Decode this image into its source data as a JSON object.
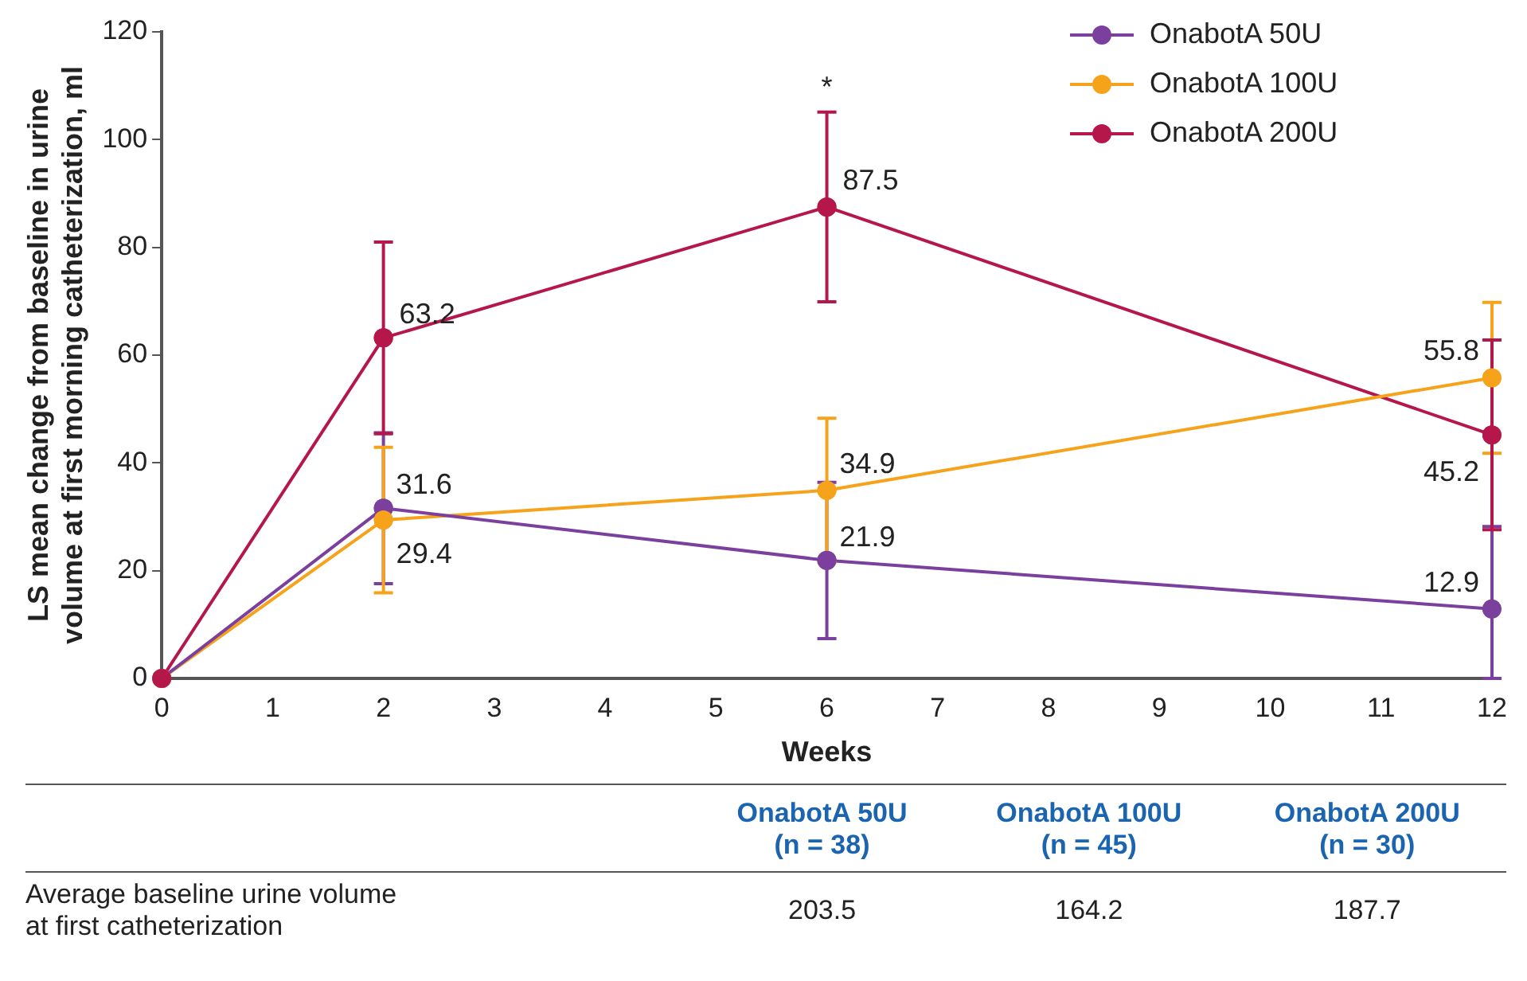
{
  "chart_data": {
    "type": "line",
    "xlabel": "Weeks",
    "ylabel": "LS mean change from baseline in urine volume at first morning catheterization, ml",
    "x": [
      0,
      2,
      6,
      12
    ],
    "series": [
      {
        "name": "OnabotA 50U",
        "color": "#7b3f9e",
        "values": [
          0,
          31.6,
          21.9,
          12.9
        ],
        "errors": [
          null,
          14,
          14.5,
          [
            0,
            28.2
          ]
        ],
        "value_labels": [
          null,
          "31.6",
          "21.9",
          "12.9"
        ]
      },
      {
        "name": "OnabotA 100U",
        "color": "#f7a21b",
        "values": [
          0,
          29.4,
          34.9,
          55.8
        ],
        "errors": [
          null,
          13.5,
          13.4,
          14
        ],
        "value_labels": [
          null,
          "29.4",
          "34.9",
          "55.8"
        ]
      },
      {
        "name": "OnabotA 200U",
        "color": "#b5174b",
        "values": [
          0,
          63.2,
          87.5,
          45.2
        ],
        "errors": [
          null,
          17.8,
          17.6,
          17.6
        ],
        "value_labels": [
          null,
          "63.2",
          "87.5",
          "45.2"
        ]
      }
    ],
    "xlim": [
      0,
      12
    ],
    "xticks": [
      0,
      1,
      2,
      3,
      4,
      5,
      6,
      7,
      8,
      9,
      10,
      11,
      12
    ],
    "ylim": [
      0,
      120
    ],
    "yticks": [
      0,
      20,
      40,
      60,
      80,
      100,
      120
    ],
    "grid": false,
    "legend": "top right",
    "marker": "circle",
    "line_style": "solid",
    "annotations": [
      {
        "text": "*",
        "x": 6,
        "y": 105
      },
      "OnabotA 50U\n(n = 38)",
      "OnabotA 100U\n(n = 45)",
      "OnabotA 200U\n(n = 30)",
      "Average baseline urine volume\nat first catheterization",
      "203.5",
      "164.2",
      "187.7"
    ]
  }
}
